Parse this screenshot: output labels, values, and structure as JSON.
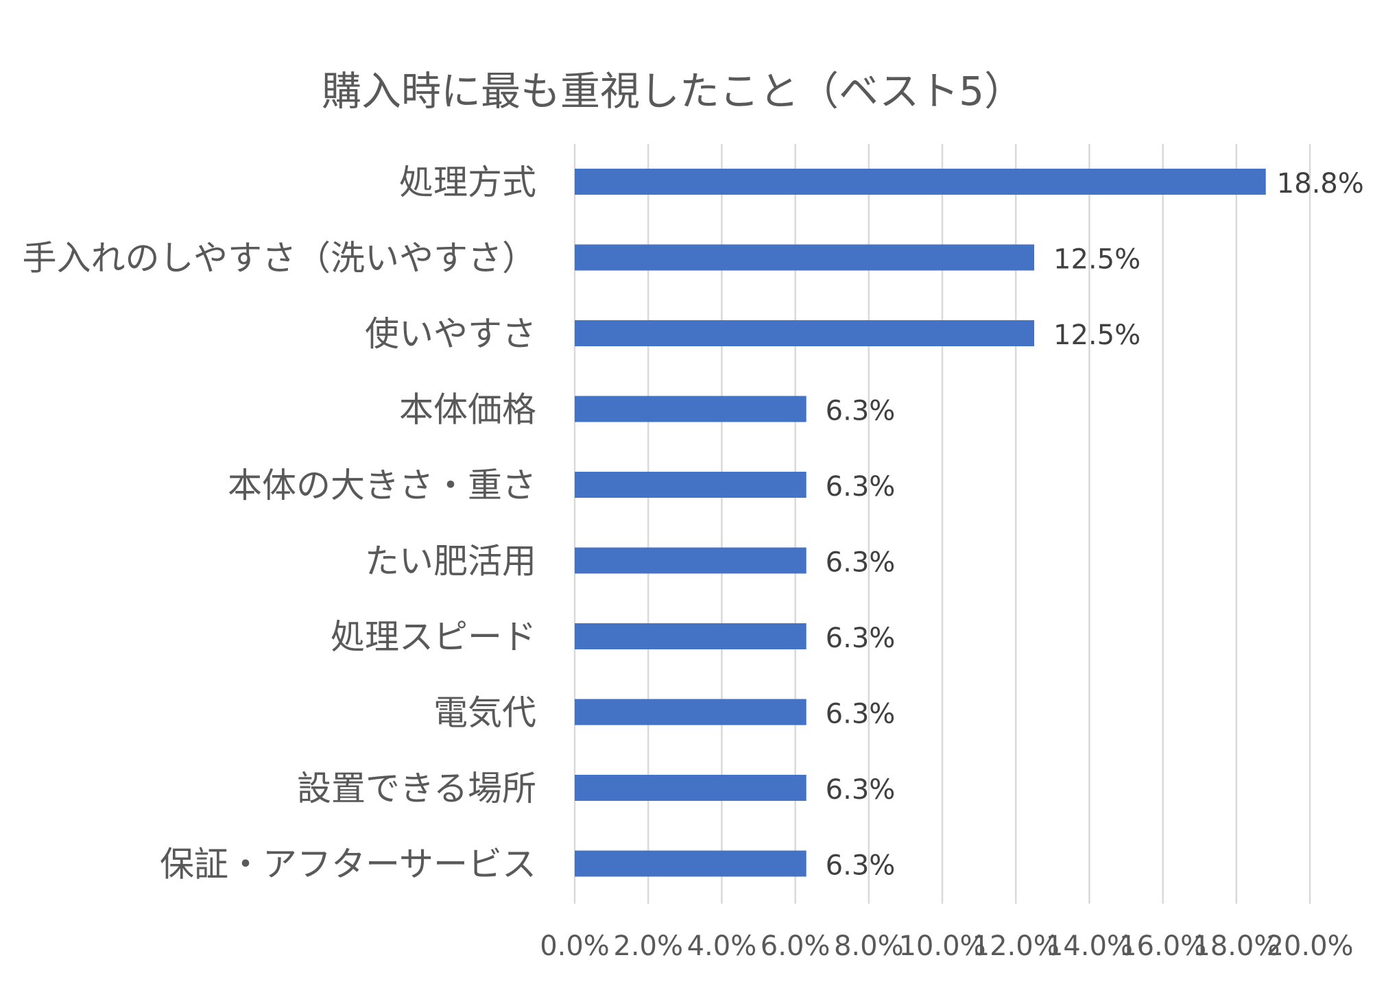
{
  "chart_data": {
    "type": "bar",
    "orientation": "horizontal",
    "title": "購入時に最も重視したこと（ベスト5）",
    "categories": [
      "処理方式",
      "手入れのしやすさ（洗いやすさ）",
      "使いやすさ",
      "本体価格",
      "本体の大きさ・重さ",
      "たい肥活用",
      "処理スピード",
      "電気代",
      "設置できる場所",
      "保証・アフターサービス"
    ],
    "values": [
      18.8,
      12.5,
      12.5,
      6.3,
      6.3,
      6.3,
      6.3,
      6.3,
      6.3,
      6.3
    ],
    "value_labels": [
      "18.8%",
      "12.5%",
      "12.5%",
      "6.3%",
      "6.3%",
      "6.3%",
      "6.3%",
      "6.3%",
      "6.3%",
      "6.3%"
    ],
    "xlim": [
      0,
      20
    ],
    "x_ticks": [
      0,
      2,
      4,
      6,
      8,
      10,
      12,
      14,
      16,
      18,
      20
    ],
    "x_tick_labels": [
      "0.0%",
      "2.0%",
      "4.0%",
      "6.0%",
      "8.0%",
      "10.0%",
      "12.0%",
      "14.0%",
      "16.0%",
      "18.0%",
      "20.0%"
    ],
    "grid": "vertical",
    "legend": "none",
    "colors": {
      "bar": "#4472C4",
      "grid": "#D9D9D9",
      "text": "#595959",
      "data_label": "#404040"
    }
  }
}
